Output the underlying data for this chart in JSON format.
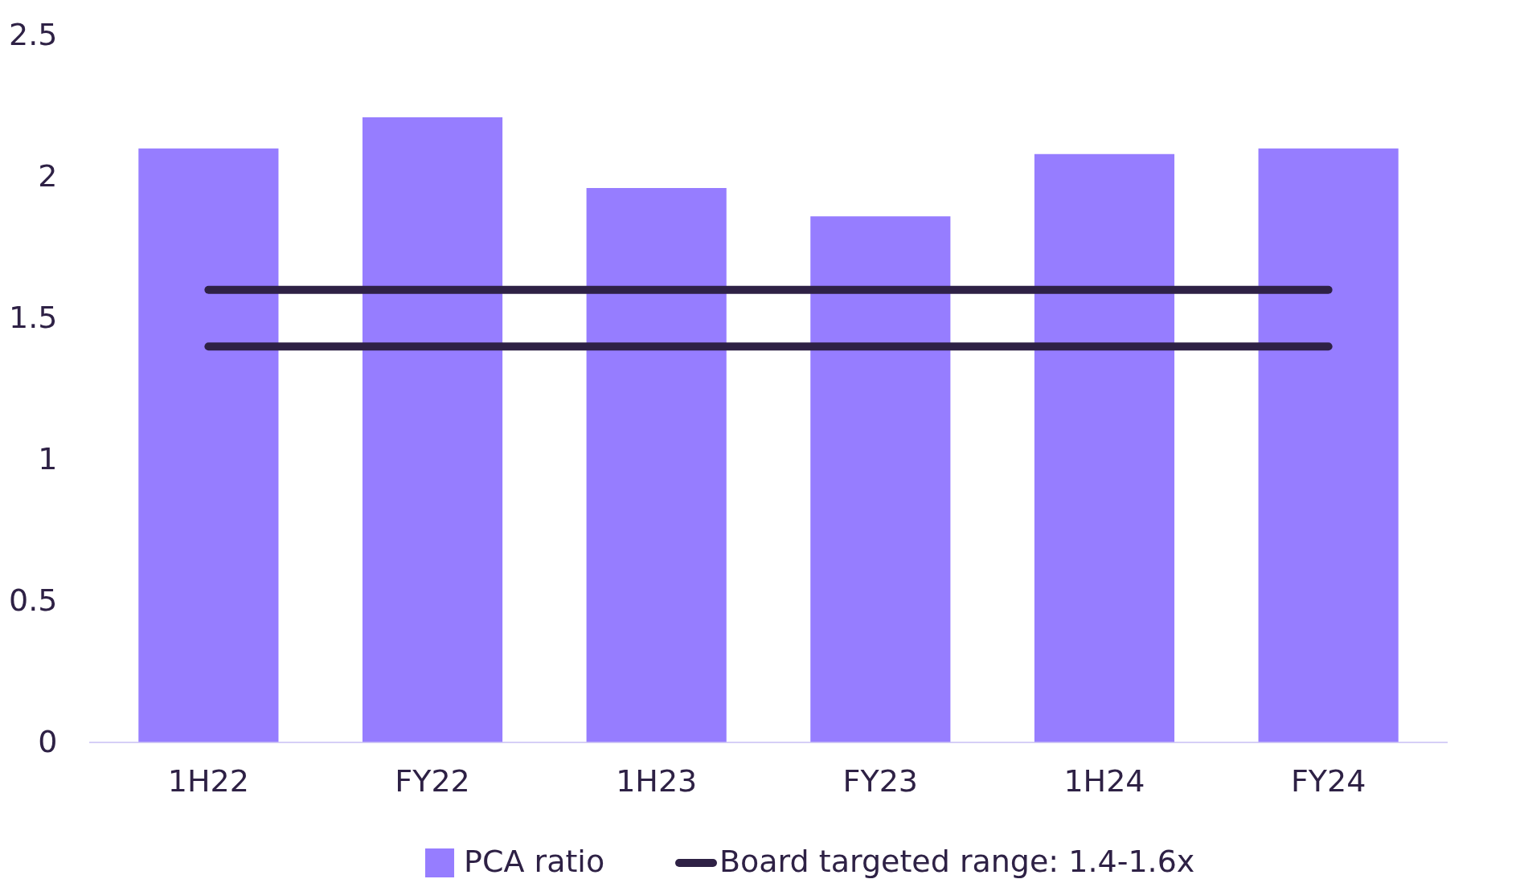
{
  "chart_data": {
    "type": "bar",
    "categories": [
      "1H22",
      "FY22",
      "1H23",
      "FY23",
      "1H24",
      "FY24"
    ],
    "series": [
      {
        "name": "PCA ratio",
        "color": "#967dff",
        "values": [
          2.1,
          2.21,
          1.96,
          1.86,
          2.08,
          2.1
        ]
      },
      {
        "type": "line",
        "name": "Board targeted range: 1.4-1.6x",
        "color": "#2e2145",
        "values": [
          1.6,
          1.6,
          1.6,
          1.6,
          1.6,
          1.6
        ]
      },
      {
        "type": "line",
        "color": "#2e2145",
        "values": [
          1.4,
          1.4,
          1.4,
          1.4,
          1.4,
          1.4
        ]
      }
    ],
    "ylim": [
      0,
      2.5
    ],
    "yticks": [
      0,
      0.5,
      1,
      1.5,
      2,
      2.5
    ],
    "legend": "bottom"
  }
}
